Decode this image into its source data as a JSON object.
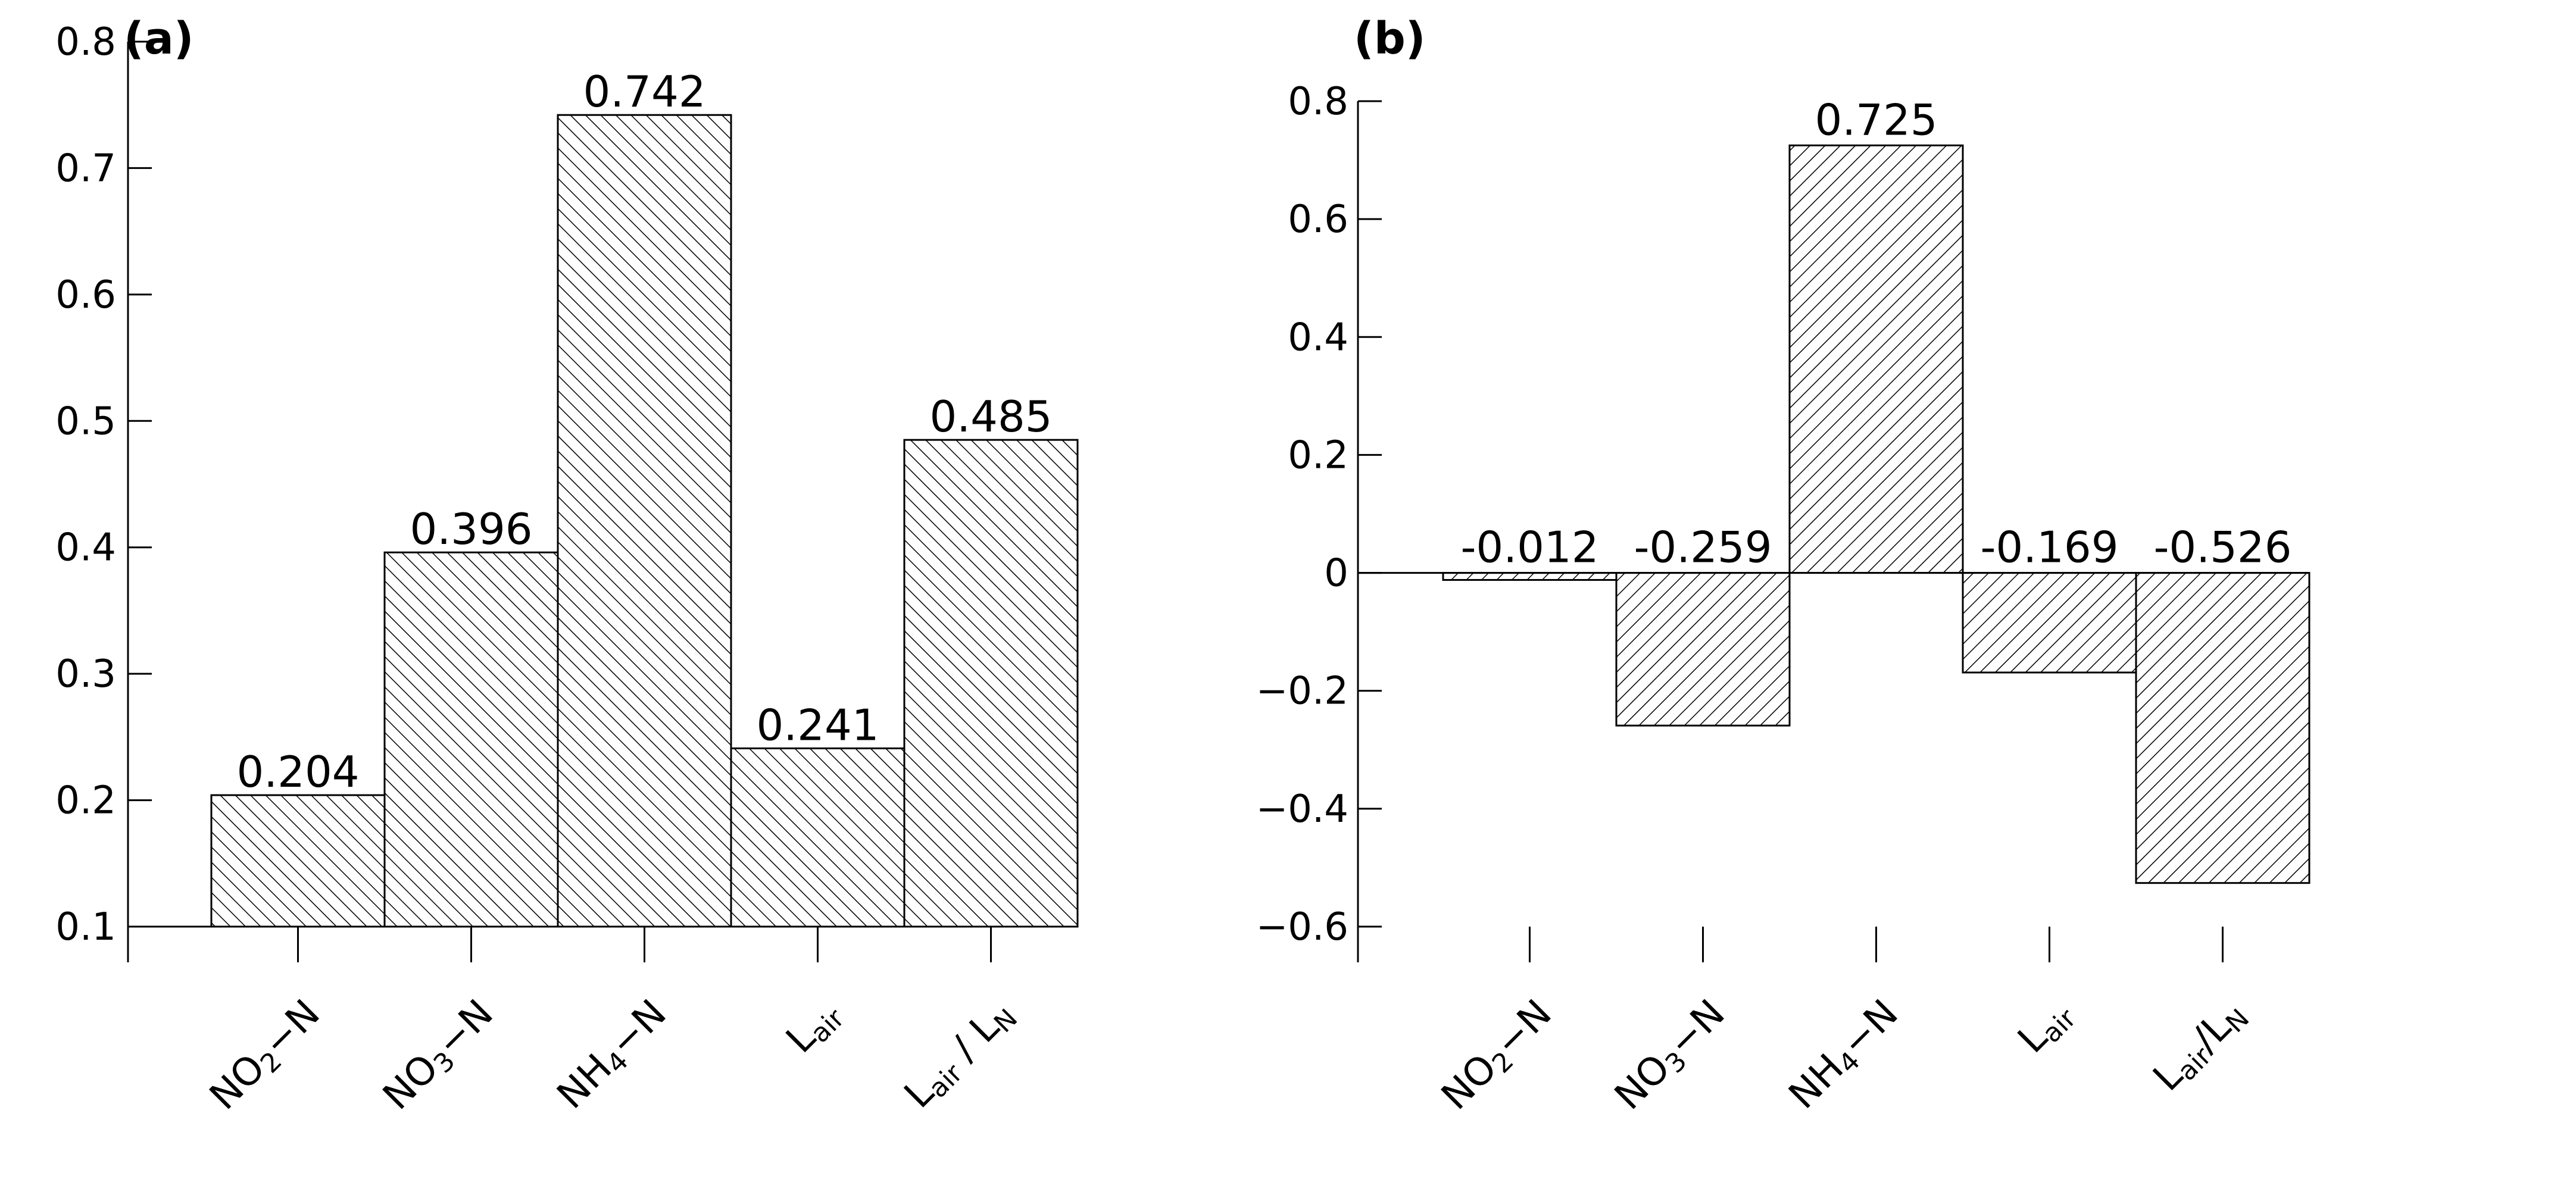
{
  "chart_data": [
    {
      "panel_label": "(a)",
      "type": "bar",
      "hatch": "backslash",
      "categories": [
        {
          "base": "NO",
          "sub": "2",
          "rest": "−N"
        },
        {
          "base": "NO",
          "sub": "3",
          "rest": "−N"
        },
        {
          "base": "NH",
          "sub": "4",
          "rest": "−N"
        },
        {
          "base": "L",
          "sub": "air",
          "rest": ""
        },
        {
          "base": "L",
          "sub": "air",
          "rest": " / L",
          "sub2": "N"
        }
      ],
      "values": [
        0.204,
        0.396,
        0.742,
        0.241,
        0.485
      ],
      "data_labels": [
        "0.204",
        "0.396",
        "0.742",
        "0.241",
        "0.485"
      ],
      "ylim": [
        0.1,
        0.8
      ],
      "yticks": [
        0.1,
        0.2,
        0.3,
        0.4,
        0.5,
        0.6,
        0.7,
        0.8
      ],
      "ytick_labels": [
        "0.1",
        "0.2",
        "0.3",
        "0.4",
        "0.5",
        "0.6",
        "0.7",
        "0.8"
      ],
      "baseline": 0.1,
      "title": "",
      "xlabel": "",
      "ylabel": "",
      "grid": false
    },
    {
      "panel_label": "(b)",
      "type": "bar",
      "hatch": "slash",
      "categories": [
        {
          "base": "NO",
          "sub": "2",
          "rest": "−N"
        },
        {
          "base": "NO",
          "sub": "3",
          "rest": "−N"
        },
        {
          "base": "NH",
          "sub": "4",
          "rest": "−N"
        },
        {
          "base": "L",
          "sub": "air",
          "rest": ""
        },
        {
          "base": "L",
          "sub": "air",
          "rest": "/L",
          "sub2": "N"
        }
      ],
      "values": [
        -0.012,
        -0.259,
        0.725,
        -0.169,
        -0.526
      ],
      "data_labels": [
        "-0.012",
        "-0.259",
        "0.725",
        "-0.169",
        "-0.526"
      ],
      "ylim": [
        -0.6,
        0.8
      ],
      "yticks": [
        -0.6,
        -0.4,
        -0.2,
        0,
        0.2,
        0.4,
        0.6,
        0.8
      ],
      "ytick_labels": [
        "−0.6",
        "−0.4",
        "−0.2",
        "0",
        "0.2",
        "0.4",
        "0.6",
        "0.8"
      ],
      "baseline": 0,
      "title": "",
      "xlabel": "",
      "ylabel": "",
      "grid": false
    }
  ],
  "colors": {
    "ink": "#000000",
    "background": "#ffffff"
  }
}
